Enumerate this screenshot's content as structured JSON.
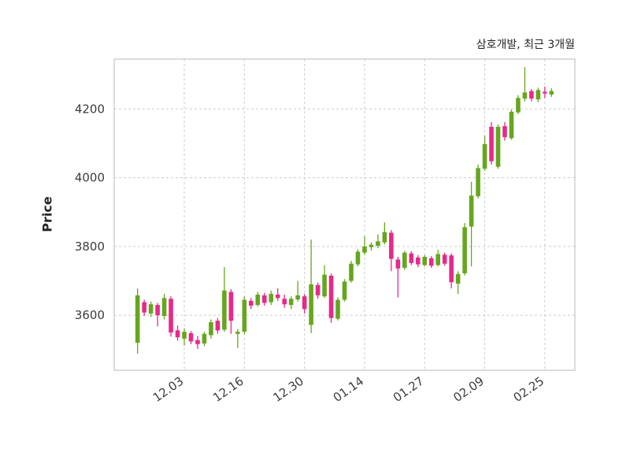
{
  "chart_data": {
    "type": "candlestick",
    "title": "삼호개발, 최근 3개월",
    "ylabel": "Price",
    "y_ticks": [
      3600,
      3800,
      4000,
      4200
    ],
    "ylim": [
      3440,
      4345
    ],
    "x_tick_labels": [
      "12.03",
      "12.16",
      "12.30",
      "01.14",
      "01.27",
      "02.09",
      "02.25"
    ],
    "x_tick_indices": [
      7,
      16,
      25,
      34,
      43,
      52,
      61
    ],
    "grid": true,
    "grid_style": "dashed",
    "legend_position": "none",
    "up_color": "#66A61E",
    "down_color": "#E7298A",
    "grid_color": "#cccccc",
    "frame_color": "#c4c4c4",
    "tick_label_color": "#3d3d3d",
    "ohlc_order": [
      "open",
      "high",
      "low",
      "close"
    ],
    "candles": [
      [
        3520,
        3678,
        3488,
        3658
      ],
      [
        3638,
        3645,
        3598,
        3608
      ],
      [
        3605,
        3640,
        3595,
        3632
      ],
      [
        3630,
        3636,
        3568,
        3600
      ],
      [
        3598,
        3662,
        3588,
        3650
      ],
      [
        3648,
        3655,
        3538,
        3550
      ],
      [
        3556,
        3570,
        3526,
        3536
      ],
      [
        3532,
        3562,
        3512,
        3552
      ],
      [
        3548,
        3554,
        3516,
        3524
      ],
      [
        3528,
        3540,
        3502,
        3516
      ],
      [
        3518,
        3552,
        3510,
        3546
      ],
      [
        3542,
        3588,
        3532,
        3580
      ],
      [
        3584,
        3592,
        3546,
        3556
      ],
      [
        3558,
        3740,
        3552,
        3672
      ],
      [
        3668,
        3676,
        3546,
        3584
      ],
      [
        3546,
        3560,
        3505,
        3552
      ],
      [
        3552,
        3655,
        3545,
        3645
      ],
      [
        3642,
        3650,
        3618,
        3628
      ],
      [
        3630,
        3668,
        3625,
        3660
      ],
      [
        3658,
        3665,
        3628,
        3636
      ],
      [
        3638,
        3672,
        3630,
        3662
      ],
      [
        3660,
        3678,
        3642,
        3650
      ],
      [
        3648,
        3660,
        3622,
        3632
      ],
      [
        3630,
        3655,
        3618,
        3648
      ],
      [
        3646,
        3700,
        3640,
        3658
      ],
      [
        3655,
        3662,
        3605,
        3618
      ],
      [
        3572,
        3820,
        3548,
        3690
      ],
      [
        3688,
        3695,
        3648,
        3658
      ],
      [
        3655,
        3745,
        3650,
        3718
      ],
      [
        3715,
        3722,
        3578,
        3592
      ],
      [
        3590,
        3652,
        3585,
        3645
      ],
      [
        3645,
        3705,
        3640,
        3698
      ],
      [
        3700,
        3758,
        3695,
        3750
      ],
      [
        3748,
        3792,
        3742,
        3785
      ],
      [
        3782,
        3830,
        3775,
        3800
      ],
      [
        3798,
        3812,
        3788,
        3805
      ],
      [
        3802,
        3835,
        3795,
        3815
      ],
      [
        3812,
        3870,
        3806,
        3842
      ],
      [
        3840,
        3848,
        3728,
        3764
      ],
      [
        3762,
        3770,
        3652,
        3736
      ],
      [
        3738,
        3788,
        3732,
        3782
      ],
      [
        3780,
        3786,
        3746,
        3752
      ],
      [
        3768,
        3775,
        3740,
        3748
      ],
      [
        3746,
        3775,
        3742,
        3770
      ],
      [
        3766,
        3772,
        3738,
        3744
      ],
      [
        3746,
        3790,
        3742,
        3778
      ],
      [
        3776,
        3782,
        3744,
        3750
      ],
      [
        3774,
        3780,
        3678,
        3696
      ],
      [
        3692,
        3728,
        3662,
        3720
      ],
      [
        3722,
        3868,
        3716,
        3856
      ],
      [
        3858,
        3988,
        3742,
        3948
      ],
      [
        3946,
        4038,
        3940,
        4028
      ],
      [
        4026,
        4122,
        4020,
        4098
      ],
      [
        4148,
        4162,
        4038,
        4048
      ],
      [
        4032,
        4155,
        4026,
        4148
      ],
      [
        4150,
        4162,
        4108,
        4118
      ],
      [
        4115,
        4198,
        4110,
        4192
      ],
      [
        4190,
        4240,
        4185,
        4232
      ],
      [
        4230,
        4322,
        4222,
        4248
      ],
      [
        4252,
        4258,
        4222,
        4230
      ],
      [
        4228,
        4262,
        4220,
        4255
      ],
      [
        4250,
        4265,
        4232,
        4245
      ],
      [
        4242,
        4260,
        4235,
        4252
      ]
    ]
  }
}
